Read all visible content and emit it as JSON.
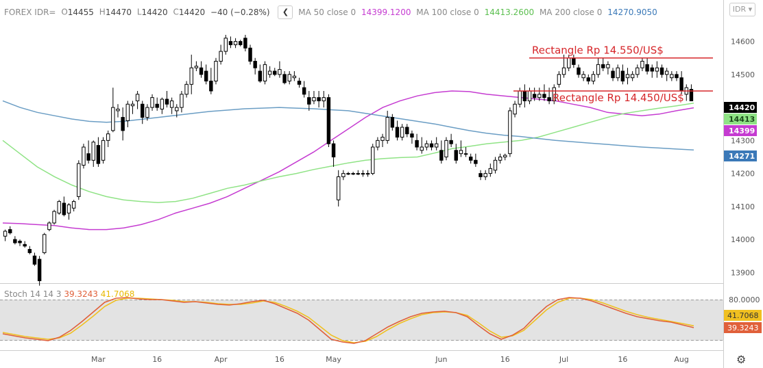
{
  "header": {
    "symbol": "FOREX IDR=",
    "o_label": "O",
    "o_value": "14455",
    "h_label": "H",
    "h_value": "14470",
    "l_label": "L",
    "l_value": "14420",
    "c_label": "C",
    "c_value": "14420",
    "change": "−40 (−0.28%)",
    "collapse_icon": "chevron-left-icon",
    "ma50_label": "MA 50 close 0",
    "ma50_value": "14399.1200",
    "ma100_label": "MA 100 close 0",
    "ma100_value": "14413.2600",
    "ma200_label": "MA 200 close 0",
    "ma200_value": "14270.9050"
  },
  "currency_button": "IDR",
  "stoch": {
    "label": "Stoch 14 14 3",
    "k_value": "39.3243",
    "d_value": "41.7068"
  },
  "settings_icon": "gear-icon",
  "chart_data": [
    {
      "type": "candlestick",
      "title": "FOREX IDR=",
      "x_tick_labels": [
        "Mar",
        "16",
        "Apr",
        "16",
        "May",
        "Jun",
        "16",
        "Jul",
        "16",
        "Aug"
      ],
      "y_tick_labels": [
        "14600",
        "14500",
        "14400",
        "14300",
        "14200",
        "14100",
        "14000",
        "13900"
      ],
      "ylim": [
        13880,
        14680
      ],
      "grid": false,
      "colors": {
        "ma50": "#c53bd1",
        "ma100": "#8fe385",
        "ma200": "#6a9dc4",
        "annotation": "#d6262a",
        "candle": "#000000"
      },
      "price_badges": [
        {
          "text": "14420",
          "bg": "#000000",
          "fg": "#ffffff",
          "value": 14420
        },
        {
          "text": "14413",
          "bg": "#8fe385",
          "fg": "#1a4a1a",
          "value": 14413
        },
        {
          "text": "14399",
          "bg": "#c53bd1",
          "fg": "#ffffff",
          "value": 14399
        },
        {
          "text": "14271",
          "bg": "#3b79b8",
          "fg": "#ffffff",
          "value": 14271
        }
      ],
      "annotations": [
        {
          "text": "Rectangle  Rp 14.550/US$",
          "value": 14550
        },
        {
          "text": "Rectangle Rp 14.450/US$",
          "value": 14450
        }
      ],
      "candles": [
        [
          14010,
          14030,
          13995,
          14025
        ],
        [
          14030,
          14040,
          14015,
          14020
        ],
        [
          14000,
          14010,
          13985,
          13990
        ],
        [
          13995,
          14000,
          13980,
          13990
        ],
        [
          13985,
          13995,
          13975,
          13980
        ],
        [
          13970,
          13980,
          13955,
          13960
        ],
        [
          13950,
          13960,
          13920,
          13925
        ],
        [
          13940,
          13950,
          13860,
          13875
        ],
        [
          13960,
          14020,
          13955,
          14015
        ],
        [
          14030,
          14055,
          14025,
          14050
        ],
        [
          14050,
          14090,
          14045,
          14085
        ],
        [
          14080,
          14120,
          14075,
          14115
        ],
        [
          14110,
          14130,
          14070,
          14075
        ],
        [
          14080,
          14110,
          14060,
          14105
        ],
        [
          14095,
          14120,
          14085,
          14115
        ],
        [
          14130,
          14240,
          14120,
          14230
        ],
        [
          14225,
          14290,
          14215,
          14280
        ],
        [
          14260,
          14300,
          14230,
          14240
        ],
        [
          14240,
          14300,
          14220,
          14295
        ],
        [
          14285,
          14310,
          14220,
          14230
        ],
        [
          14240,
          14310,
          14230,
          14300
        ],
        [
          14300,
          14330,
          14280,
          14320
        ],
        [
          14330,
          14460,
          14325,
          14400
        ],
        [
          14390,
          14410,
          14370,
          14395
        ],
        [
          14370,
          14400,
          14300,
          14330
        ],
        [
          14360,
          14420,
          14340,
          14410
        ],
        [
          14405,
          14420,
          14380,
          14410
        ],
        [
          14420,
          14450,
          14395,
          14440
        ],
        [
          14410,
          14420,
          14350,
          14370
        ],
        [
          14370,
          14410,
          14360,
          14400
        ],
        [
          14400,
          14440,
          14390,
          14430
        ],
        [
          14410,
          14430,
          14390,
          14400
        ],
        [
          14395,
          14430,
          14380,
          14425
        ],
        [
          14425,
          14450,
          14400,
          14410
        ],
        [
          14400,
          14430,
          14380,
          14420
        ],
        [
          14390,
          14410,
          14370,
          14400
        ],
        [
          14400,
          14450,
          14385,
          14440
        ],
        [
          14440,
          14480,
          14430,
          14470
        ],
        [
          14470,
          14560,
          14440,
          14520
        ],
        [
          14520,
          14540,
          14510,
          14525
        ],
        [
          14520,
          14540,
          14490,
          14500
        ],
        [
          14510,
          14530,
          14470,
          14480
        ],
        [
          14480,
          14520,
          14440,
          14450
        ],
        [
          14480,
          14550,
          14470,
          14540
        ],
        [
          14540,
          14590,
          14530,
          14570
        ],
        [
          14570,
          14620,
          14560,
          14610
        ],
        [
          14600,
          14615,
          14580,
          14590
        ],
        [
          14590,
          14610,
          14580,
          14600
        ],
        [
          14600,
          14605,
          14585,
          14590
        ],
        [
          14610,
          14620,
          14570,
          14580
        ],
        [
          14580,
          14590,
          14530,
          14540
        ],
        [
          14540,
          14550,
          14500,
          14520
        ],
        [
          14510,
          14530,
          14475,
          14480
        ],
        [
          14480,
          14540,
          14470,
          14530
        ],
        [
          14500,
          14525,
          14490,
          14510
        ],
        [
          14510,
          14520,
          14495,
          14500
        ],
        [
          14500,
          14540,
          14490,
          14515
        ],
        [
          14500,
          14510,
          14470,
          14475
        ],
        [
          14480,
          14510,
          14470,
          14500
        ],
        [
          14490,
          14510,
          14480,
          14495
        ],
        [
          14480,
          14490,
          14460,
          14470
        ],
        [
          14460,
          14480,
          14430,
          14440
        ],
        [
          14430,
          14450,
          14390,
          14410
        ],
        [
          14420,
          14450,
          14410,
          14430
        ],
        [
          14430,
          14450,
          14400,
          14420
        ],
        [
          14420,
          14450,
          14400,
          14430
        ],
        [
          14430,
          14440,
          14280,
          14290
        ],
        [
          14290,
          14300,
          14220,
          14250
        ],
        [
          14120,
          14210,
          14100,
          14190
        ],
        [
          14190,
          14210,
          14180,
          14200
        ],
        [
          14200,
          14205,
          14195,
          14200
        ],
        [
          14200,
          14205,
          14195,
          14200
        ],
        [
          14200,
          14210,
          14195,
          14200
        ],
        [
          14200,
          14210,
          14190,
          14200
        ],
        [
          14200,
          14210,
          14190,
          14200
        ],
        [
          14200,
          14290,
          14195,
          14280
        ],
        [
          14280,
          14310,
          14270,
          14300
        ],
        [
          14300,
          14320,
          14280,
          14310
        ],
        [
          14300,
          14390,
          14290,
          14370
        ],
        [
          14370,
          14380,
          14330,
          14340
        ],
        [
          14340,
          14360,
          14300,
          14310
        ],
        [
          14310,
          14350,
          14300,
          14340
        ],
        [
          14340,
          14350,
          14310,
          14320
        ],
        [
          14320,
          14330,
          14290,
          14310
        ],
        [
          14300,
          14320,
          14270,
          14280
        ],
        [
          14270,
          14310,
          14260,
          14280
        ],
        [
          14280,
          14300,
          14270,
          14290
        ],
        [
          14290,
          14300,
          14270,
          14280
        ],
        [
          14280,
          14310,
          14270,
          14290
        ],
        [
          14270,
          14300,
          14230,
          14240
        ],
        [
          14250,
          14310,
          14240,
          14300
        ],
        [
          14300,
          14320,
          14280,
          14290
        ],
        [
          14270,
          14290,
          14230,
          14240
        ],
        [
          14260,
          14300,
          14250,
          14270
        ],
        [
          14260,
          14280,
          14250,
          14260
        ],
        [
          14250,
          14260,
          14230,
          14240
        ],
        [
          14240,
          14260,
          14220,
          14230
        ],
        [
          14200,
          14210,
          14180,
          14190
        ],
        [
          14190,
          14210,
          14180,
          14200
        ],
        [
          14200,
          14230,
          14190,
          14215
        ],
        [
          14210,
          14250,
          14200,
          14240
        ],
        [
          14240,
          14260,
          14230,
          14250
        ],
        [
          14250,
          14260,
          14240,
          14255
        ],
        [
          14260,
          14400,
          14250,
          14390
        ],
        [
          14380,
          14420,
          14370,
          14410
        ],
        [
          14410,
          14460,
          14400,
          14450
        ],
        [
          14450,
          14470,
          14400,
          14420
        ],
        [
          14420,
          14460,
          14410,
          14450
        ],
        [
          14440,
          14460,
          14420,
          14430
        ],
        [
          14430,
          14460,
          14420,
          14440
        ],
        [
          14440,
          14470,
          14420,
          14430
        ],
        [
          14430,
          14460,
          14410,
          14420
        ],
        [
          14420,
          14470,
          14410,
          14460
        ],
        [
          14470,
          14510,
          14460,
          14500
        ],
        [
          14500,
          14560,
          14490,
          14520
        ],
        [
          14520,
          14560,
          14510,
          14550
        ],
        [
          14550,
          14560,
          14520,
          14530
        ],
        [
          14520,
          14530,
          14490,
          14500
        ],
        [
          14490,
          14510,
          14480,
          14500
        ],
        [
          14490,
          14500,
          14470,
          14480
        ],
        [
          14480,
          14510,
          14470,
          14500
        ],
        [
          14500,
          14550,
          14490,
          14530
        ],
        [
          14530,
          14550,
          14510,
          14520
        ],
        [
          14520,
          14540,
          14500,
          14530
        ],
        [
          14510,
          14520,
          14480,
          14490
        ],
        [
          14490,
          14530,
          14480,
          14520
        ],
        [
          14510,
          14530,
          14470,
          14480
        ],
        [
          14490,
          14520,
          14470,
          14500
        ],
        [
          14490,
          14510,
          14480,
          14500
        ],
        [
          14500,
          14530,
          14490,
          14520
        ],
        [
          14520,
          14550,
          14510,
          14540
        ],
        [
          14530,
          14550,
          14500,
          14510
        ],
        [
          14520,
          14530,
          14490,
          14510
        ],
        [
          14510,
          14540,
          14490,
          14520
        ],
        [
          14520,
          14530,
          14490,
          14500
        ],
        [
          14500,
          14520,
          14480,
          14510
        ],
        [
          14490,
          14510,
          14480,
          14500
        ],
        [
          14500,
          14510,
          14480,
          14490
        ],
        [
          14490,
          14510,
          14440,
          14450
        ],
        [
          14440,
          14470,
          14420,
          14460
        ],
        [
          14455,
          14470,
          14420,
          14420
        ]
      ],
      "series": [
        {
          "name": "MA 50 close 0",
          "values": [
            14050,
            14048,
            14045,
            14042,
            14035,
            14030,
            14030,
            14035,
            14045,
            14060,
            14080,
            14095,
            14110,
            14130,
            14155,
            14180,
            14205,
            14235,
            14265,
            14300,
            14335,
            14370,
            14400,
            14420,
            14435,
            14445,
            14450,
            14448,
            14440,
            14435,
            14430,
            14425,
            14420,
            14410,
            14400,
            14385,
            14380,
            14375,
            14380,
            14390,
            14399
          ]
        },
        {
          "name": "MA 100 close 0",
          "values": [
            14300,
            14260,
            14220,
            14190,
            14165,
            14145,
            14130,
            14120,
            14115,
            14112,
            14115,
            14125,
            14140,
            14155,
            14165,
            14178,
            14190,
            14200,
            14212,
            14222,
            14232,
            14240,
            14245,
            14248,
            14250,
            14262,
            14275,
            14282,
            14290,
            14295,
            14300,
            14310,
            14325,
            14340,
            14355,
            14370,
            14382,
            14390,
            14398,
            14405,
            14413
          ]
        },
        {
          "name": "MA 200 close 0",
          "values": [
            14420,
            14400,
            14385,
            14375,
            14365,
            14358,
            14355,
            14358,
            14364,
            14370,
            14376,
            14382,
            14388,
            14392,
            14396,
            14398,
            14400,
            14398,
            14396,
            14393,
            14390,
            14382,
            14374,
            14366,
            14358,
            14350,
            14340,
            14330,
            14322,
            14316,
            14312,
            14306,
            14300,
            14296,
            14292,
            14288,
            14284,
            14280,
            14277,
            14274,
            14271
          ]
        }
      ]
    },
    {
      "type": "line",
      "title": "Stoch 14 14 3",
      "y_tick_labels": [
        "80.0000"
      ],
      "ylim": [
        0,
        100
      ],
      "bands": [
        20,
        80
      ],
      "series": [
        {
          "name": "%K",
          "color": "#e0603a",
          "values": [
            30,
            27,
            24,
            22,
            20,
            25,
            35,
            48,
            62,
            76,
            82,
            83,
            81,
            80,
            80,
            78,
            76,
            77,
            75,
            73,
            72,
            74,
            77,
            79,
            74,
            67,
            60,
            50,
            36,
            22,
            18,
            16,
            20,
            30,
            40,
            48,
            55,
            60,
            62,
            63,
            61,
            55,
            42,
            30,
            22,
            28,
            38,
            55,
            70,
            80,
            83,
            82,
            78,
            72,
            66,
            60,
            55,
            52,
            49,
            47,
            43,
            39
          ]
        },
        {
          "name": "%D",
          "color": "#f0c020",
          "values": [
            32,
            29,
            26,
            24,
            22,
            24,
            31,
            43,
            56,
            70,
            79,
            82,
            82,
            81,
            80,
            79,
            77,
            77,
            76,
            74,
            73,
            73,
            75,
            78,
            76,
            70,
            63,
            54,
            41,
            28,
            20,
            17,
            19,
            26,
            36,
            45,
            52,
            58,
            61,
            62,
            61,
            57,
            46,
            34,
            25,
            27,
            35,
            50,
            65,
            76,
            82,
            82,
            80,
            75,
            69,
            63,
            58,
            54,
            51,
            48,
            45,
            41.7
          ]
        }
      ]
    }
  ]
}
